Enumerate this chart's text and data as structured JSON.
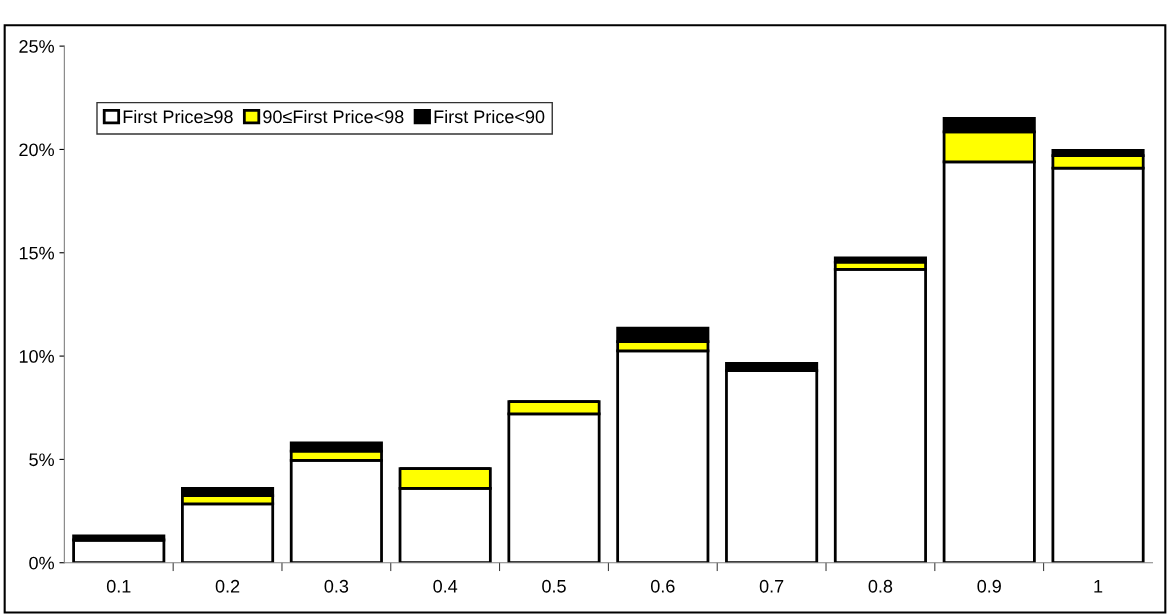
{
  "chart_data": {
    "type": "bar",
    "stacked": true,
    "categories": [
      "0.1",
      "0.2",
      "0.3",
      "0.4",
      "0.5",
      "0.6",
      "0.7",
      "0.8",
      "0.9",
      "1"
    ],
    "series": [
      {
        "name": "First Price≥98",
        "color": "#ffffff",
        "values": [
          1.1,
          2.85,
          4.95,
          3.6,
          7.2,
          10.25,
          9.3,
          14.2,
          19.4,
          19.1
        ]
      },
      {
        "name": "90≤First Price<98",
        "color": "#ffff00",
        "values": [
          0,
          0.4,
          0.45,
          0.95,
          0.6,
          0.45,
          0,
          0.35,
          1.45,
          0.6
        ]
      },
      {
        "name": "First Price<90",
        "color": "#000000",
        "values": [
          0.2,
          0.35,
          0.4,
          0,
          0,
          0.65,
          0.35,
          0.2,
          0.65,
          0.25
        ]
      }
    ],
    "ylim": [
      0,
      25
    ],
    "yticks": [
      {
        "value": 0,
        "label": "0%"
      },
      {
        "value": 5,
        "label": "5%"
      },
      {
        "value": 10,
        "label": "10%"
      },
      {
        "value": 15,
        "label": "15%"
      },
      {
        "value": 20,
        "label": "20%"
      },
      {
        "value": 25,
        "label": "25%"
      }
    ],
    "grid": false,
    "legend": "top left"
  }
}
